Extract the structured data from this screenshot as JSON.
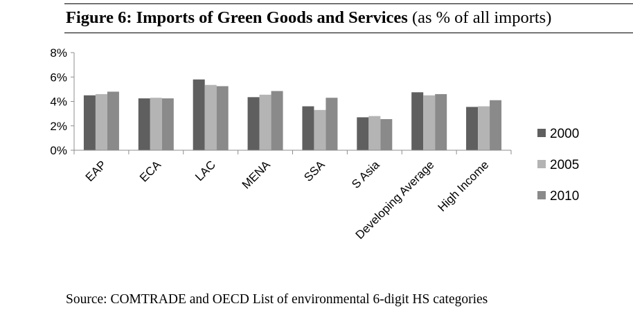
{
  "figure": {
    "title_bold": "Figure 6: Imports of Green Goods and Services",
    "title_rest": " (as % of all imports)",
    "source": "Source: COMTRADE and OECD List of environmental 6-digit HS categories"
  },
  "chart_data": {
    "type": "bar",
    "categories": [
      "EAP",
      "ECA",
      "LAC",
      "MENA",
      "SSA",
      "S Asia",
      "Developing Average",
      "High Income"
    ],
    "series": [
      {
        "name": "2000",
        "color": "#5f5f5f",
        "values": [
          4.5,
          4.25,
          5.8,
          4.35,
          3.6,
          2.7,
          4.75,
          3.55
        ]
      },
      {
        "name": "2005",
        "color": "#b4b4b4",
        "values": [
          4.6,
          4.3,
          5.35,
          4.55,
          3.3,
          2.8,
          4.5,
          3.6
        ]
      },
      {
        "name": "2010",
        "color": "#8a8a8a",
        "values": [
          4.8,
          4.25,
          5.25,
          4.85,
          4.3,
          2.55,
          4.6,
          4.1
        ]
      }
    ],
    "yticks": [
      "0%",
      "2%",
      "4%",
      "6%",
      "8%"
    ],
    "ylim": [
      0,
      8
    ],
    "grid": false,
    "legend_position": "right",
    "xlabel": "",
    "ylabel": ""
  }
}
